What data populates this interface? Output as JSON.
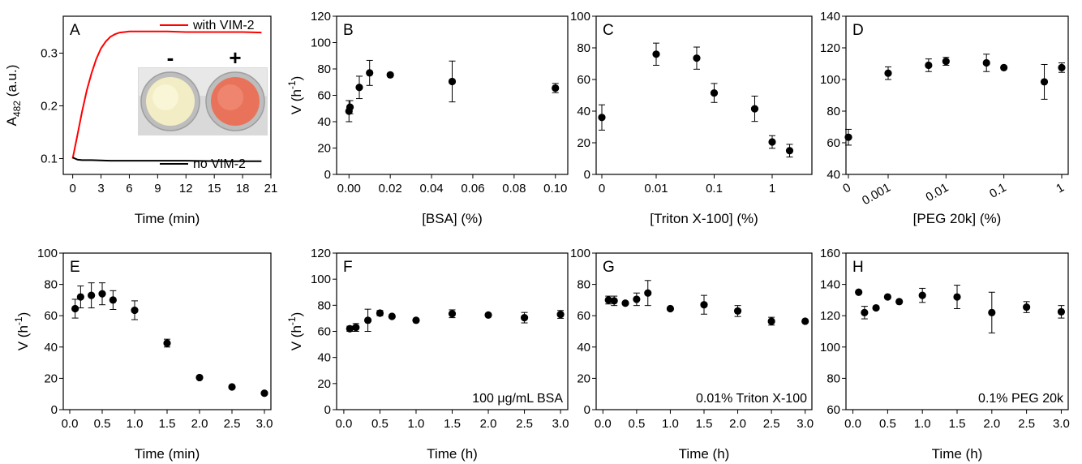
{
  "chart_data": [
    {
      "panel": "A",
      "type": "line",
      "xlabel": "Time (min)",
      "ylabel": "A482 (a.u.)",
      "xlim": [
        -1,
        21
      ],
      "ylim": [
        0.07,
        0.37
      ],
      "xticks": [
        "0",
        "3",
        "6",
        "9",
        "12",
        "15",
        "18",
        "21"
      ],
      "yticks": [
        "0.1",
        "0.2",
        "0.3"
      ],
      "series": [
        {
          "name": "with VIM-2",
          "color": "#ff0000",
          "x": [
            0,
            0.5,
            1,
            1.5,
            2,
            2.5,
            3,
            3.5,
            4,
            4.5,
            5,
            5.5,
            6,
            7,
            8,
            10,
            12,
            14,
            16,
            18,
            20
          ],
          "y": [
            0.1,
            0.145,
            0.19,
            0.23,
            0.262,
            0.289,
            0.309,
            0.322,
            0.331,
            0.336,
            0.339,
            0.34,
            0.341,
            0.341,
            0.341,
            0.341,
            0.34,
            0.34,
            0.34,
            0.34,
            0.339
          ]
        },
        {
          "name": "no VIM-2",
          "color": "#000000",
          "x": [
            0,
            0.5,
            1,
            2,
            4,
            8,
            12,
            16,
            20
          ],
          "y": [
            0.102,
            0.098,
            0.097,
            0.097,
            0.096,
            0.096,
            0.096,
            0.095,
            0.095
          ]
        }
      ],
      "inset": {
        "labels": [
          "-",
          "+"
        ],
        "well_colors": [
          "#f2edc4",
          "#e9735a"
        ]
      }
    },
    {
      "panel": "B",
      "type": "scatter",
      "xlabel": "[BSA] (%)",
      "ylabel": "V (h-1)",
      "xlim": [
        -0.006,
        0.106
      ],
      "ylim": [
        0,
        120
      ],
      "xticks": [
        "0.00",
        "0.02",
        "0.04",
        "0.06",
        "0.08",
        "0.10"
      ],
      "yticks": [
        "0",
        "20",
        "40",
        "60",
        "80",
        "100",
        "120"
      ],
      "x": [
        0.0,
        0.0005,
        0.005,
        0.01,
        0.02,
        0.05,
        0.1
      ],
      "y": [
        48,
        51,
        66,
        77,
        75.5,
        70.5,
        65.5
      ],
      "err": [
        8,
        5,
        8.5,
        9.5,
        0,
        15.5,
        3.5
      ]
    },
    {
      "panel": "C",
      "type": "scatter",
      "xscale": "log",
      "xlabel": "[Triton X-100] (%)",
      "ylabel": "",
      "ylim": [
        0,
        100
      ],
      "xticks": [
        "0",
        "0.01",
        "0.1",
        "1"
      ],
      "yticks": [
        "0",
        "20",
        "40",
        "60",
        "80",
        "100"
      ],
      "x": [
        "0",
        "0.01",
        "0.05",
        "0.1",
        "0.5",
        "1",
        "2"
      ],
      "y": [
        36,
        76,
        73.5,
        51.5,
        41.5,
        20.5,
        15
      ],
      "err": [
        8,
        7,
        7,
        6,
        8,
        4,
        4
      ]
    },
    {
      "panel": "D",
      "type": "scatter",
      "xscale": "log",
      "xlabel": "[PEG 20k] (%)",
      "ylabel": "",
      "ylim": [
        40,
        140
      ],
      "xticks": [
        "0",
        "0.001",
        "0.01",
        "0.1",
        "1"
      ],
      "yticks": [
        "40",
        "60",
        "80",
        "100",
        "120",
        "140"
      ],
      "x": [
        "0",
        "0.001",
        "0.005",
        "0.01",
        "0.05",
        "0.1",
        "0.5",
        "1"
      ],
      "y": [
        63.5,
        104,
        109,
        111.5,
        110.5,
        107.5,
        98.5,
        107.5
      ],
      "err": [
        5,
        4,
        4,
        2.5,
        5.5,
        0,
        11,
        3
      ]
    },
    {
      "panel": "E",
      "type": "scatter",
      "xlabel": "Time (min)",
      "ylabel": "V (h-1)",
      "xlim": [
        -0.1,
        3.1
      ],
      "ylim": [
        0,
        100
      ],
      "xticks": [
        "0.0",
        "0.5",
        "1.0",
        "1.5",
        "2.0",
        "2.5",
        "3.0"
      ],
      "yticks": [
        "0",
        "20",
        "40",
        "60",
        "80",
        "100"
      ],
      "x": [
        0.083,
        0.167,
        0.333,
        0.5,
        0.667,
        1.0,
        1.5,
        2.0,
        2.5,
        3.0
      ],
      "y": [
        64.5,
        72,
        73,
        74,
        70,
        63.5,
        42.5,
        20.5,
        14.5,
        10.5
      ],
      "err": [
        6,
        7,
        8,
        7,
        6,
        6,
        2.5,
        0,
        0,
        0
      ]
    },
    {
      "panel": "F",
      "type": "scatter",
      "xlabel": "Time (h)",
      "ylabel": "V (h-1)",
      "xlim": [
        -0.1,
        3.1
      ],
      "ylim": [
        0,
        120
      ],
      "xticks": [
        "0.0",
        "0.5",
        "1.0",
        "1.5",
        "2.0",
        "2.5",
        "3.0"
      ],
      "yticks": [
        "0",
        "20",
        "40",
        "60",
        "80",
        "100",
        "120"
      ],
      "x": [
        0.083,
        0.167,
        0.333,
        0.5,
        0.667,
        1.0,
        1.5,
        2.0,
        2.5,
        3.0
      ],
      "y": [
        62,
        63,
        68.5,
        74,
        71.5,
        68.5,
        73.5,
        72.5,
        70.5,
        73
      ],
      "err": [
        2,
        3,
        8.5,
        2,
        0,
        0,
        3,
        0,
        4,
        3
      ],
      "annotation": "100 μg/mL BSA"
    },
    {
      "panel": "G",
      "type": "scatter",
      "xlabel": "Time (h)",
      "ylabel": "",
      "xlim": [
        -0.1,
        3.1
      ],
      "ylim": [
        0,
        100
      ],
      "xticks": [
        "0.0",
        "0.5",
        "1.0",
        "1.5",
        "2.0",
        "2.5",
        "3.0"
      ],
      "yticks": [
        "0",
        "20",
        "40",
        "60",
        "80",
        "100"
      ],
      "x": [
        0.083,
        0.167,
        0.333,
        0.5,
        0.667,
        1.0,
        1.5,
        2.0,
        2.5,
        3.0
      ],
      "y": [
        70,
        69.5,
        68,
        70.5,
        74.5,
        64.5,
        67,
        63,
        56.5,
        56.5
      ],
      "err": [
        2.5,
        3,
        0,
        4,
        8,
        0,
        6,
        3.5,
        2.5,
        0
      ],
      "annotation": "0.01% Triton X-100"
    },
    {
      "panel": "H",
      "type": "scatter",
      "xlabel": "Time (h)",
      "ylabel": "",
      "xlim": [
        -0.1,
        3.1
      ],
      "ylim": [
        60,
        160
      ],
      "xticks": [
        "0.0",
        "0.5",
        "1.0",
        "1.5",
        "2.0",
        "2.5",
        "3.0"
      ],
      "yticks": [
        "60",
        "80",
        "100",
        "120",
        "140",
        "160"
      ],
      "x": [
        0.083,
        0.167,
        0.333,
        0.5,
        0.667,
        1.0,
        1.5,
        2.0,
        2.5,
        3.0
      ],
      "y": [
        135,
        122,
        125,
        132,
        129,
        133,
        132,
        122,
        125.5,
        122.5
      ],
      "err": [
        0,
        4,
        0,
        0,
        0,
        4.5,
        7.5,
        13,
        3.5,
        4
      ],
      "annotation": "0.1% PEG 20k"
    }
  ]
}
